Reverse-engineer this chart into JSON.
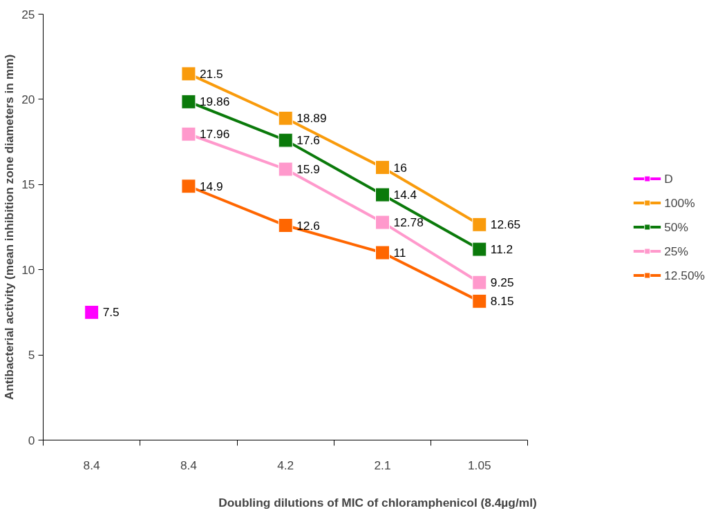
{
  "chart_data": {
    "type": "line",
    "xlabel": "Doubling dilutions of MIC of chloramphenicol (8.4µg/ml)",
    "ylabel": "Antibacterial activity (mean inhibition zone diameters in mm)",
    "categories": [
      "8.4",
      "8.4",
      "4.2",
      "2.1",
      "1.05"
    ],
    "series": [
      {
        "name": "D",
        "color": "#ff00ff",
        "values": [
          7.5,
          null,
          null,
          null,
          null
        ]
      },
      {
        "name": "100%",
        "color": "#f99b0c",
        "values": [
          null,
          21.5,
          18.89,
          16,
          12.65
        ]
      },
      {
        "name": "50%",
        "color": "#0b7a0b",
        "values": [
          null,
          19.86,
          17.6,
          14.4,
          11.2
        ]
      },
      {
        "name": "25%",
        "color": "#ff99cc",
        "values": [
          null,
          17.96,
          15.9,
          12.78,
          9.25
        ]
      },
      {
        "name": "12.50%",
        "color": "#ff6600",
        "values": [
          null,
          14.9,
          12.6,
          11,
          8.15
        ]
      }
    ],
    "ylim": [
      0,
      25
    ],
    "yticks": [
      0,
      5,
      10,
      15,
      20,
      25
    ],
    "grid": false,
    "legend": "right",
    "marker": "square",
    "line_style": "solid",
    "data_labels": true
  }
}
